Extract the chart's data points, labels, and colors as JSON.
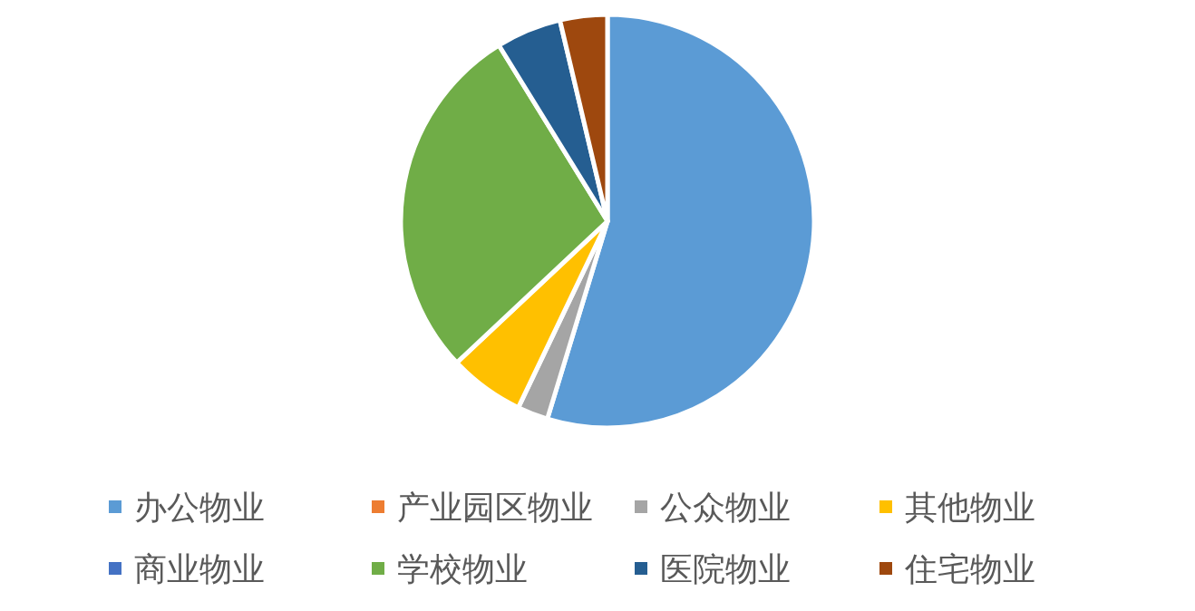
{
  "chart_data": {
    "type": "pie",
    "categories": [
      "办公物业",
      "产业园区物业",
      "公众物业",
      "其他物业",
      "商业物业",
      "学校物业",
      "医院物业",
      "住宅物业"
    ],
    "values": [
      54.7,
      null,
      2.4,
      5.9,
      null,
      28.2,
      5.1,
      3.7
    ],
    "colors": [
      "#5b9bd5",
      "#ed7d31",
      "#a5a5a5",
      "#ffc000",
      "#4472c4",
      "#70ad47",
      "#255e91",
      "#9e480e"
    ],
    "legend": "bottom"
  }
}
